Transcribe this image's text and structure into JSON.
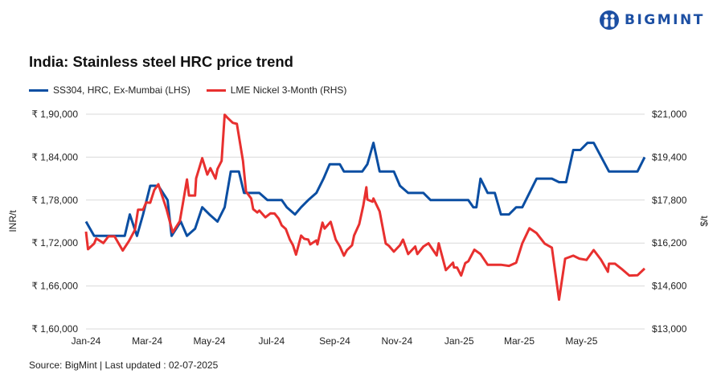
{
  "brand": {
    "name": "BIGMINT",
    "color": "#1c4fa3"
  },
  "chart_data": {
    "type": "line",
    "title": "India: Stainless steel HRC price trend",
    "legend_position": "top-left",
    "grid": true,
    "x_ticks": [
      "Jan-24",
      "Mar-24",
      "May-24",
      "Jul-24",
      "Sep-24",
      "Nov-24",
      "Jan-25",
      "Mar-25",
      "May-25"
    ],
    "x_tick_dates": [
      "2024-01-01",
      "2024-03-01",
      "2024-05-01",
      "2024-07-01",
      "2024-09-01",
      "2024-11-01",
      "2025-01-01",
      "2025-03-01",
      "2025-05-01"
    ],
    "xlim": [
      "2024-01-01",
      "2025-07-02"
    ],
    "y_left": {
      "label": "INR/t",
      "lim": [
        160000,
        190000
      ],
      "ticks": [
        "₹ 1,60,000",
        "₹ 1,66,000",
        "₹ 1,72,000",
        "₹ 1,78,000",
        "₹ 1,84,000",
        "₹ 1,90,000"
      ],
      "tick_values": [
        160000,
        166000,
        172000,
        178000,
        184000,
        190000
      ]
    },
    "y_right": {
      "label": "$/t",
      "lim": [
        13000,
        21000
      ],
      "ticks": [
        "$13,000",
        "$14,600",
        "$16,200",
        "$17,800",
        "$19,400",
        "$21,000"
      ],
      "tick_values": [
        13000,
        14600,
        16200,
        17800,
        19400,
        21000
      ]
    },
    "series": [
      {
        "name": "SS304, HRC, Ex-Mumbai (LHS)",
        "axis": "left",
        "color": "#0b4ea2",
        "points": [
          [
            "2024-01-01",
            175000
          ],
          [
            "2024-01-09",
            173000
          ],
          [
            "2024-02-08",
            173000
          ],
          [
            "2024-02-13",
            176000
          ],
          [
            "2024-02-20",
            173000
          ],
          [
            "2024-02-26",
            176000
          ],
          [
            "2024-03-04",
            180000
          ],
          [
            "2024-03-12",
            180000
          ],
          [
            "2024-03-21",
            178000
          ],
          [
            "2024-03-25",
            173000
          ],
          [
            "2024-04-03",
            175000
          ],
          [
            "2024-04-09",
            173000
          ],
          [
            "2024-04-17",
            174000
          ],
          [
            "2024-04-24",
            177000
          ],
          [
            "2024-05-01",
            176000
          ],
          [
            "2024-05-09",
            175000
          ],
          [
            "2024-05-16",
            177000
          ],
          [
            "2024-05-22",
            182000
          ],
          [
            "2024-05-30",
            182000
          ],
          [
            "2024-06-04",
            179000
          ],
          [
            "2024-06-19",
            179000
          ],
          [
            "2024-06-27",
            178000
          ],
          [
            "2024-07-11",
            178000
          ],
          [
            "2024-07-16",
            177000
          ],
          [
            "2024-07-24",
            176000
          ],
          [
            "2024-07-30",
            177000
          ],
          [
            "2024-08-06",
            178000
          ],
          [
            "2024-08-14",
            179000
          ],
          [
            "2024-08-21",
            181000
          ],
          [
            "2024-08-27",
            183000
          ],
          [
            "2024-09-06",
            183000
          ],
          [
            "2024-09-10",
            182000
          ],
          [
            "2024-09-28",
            182000
          ],
          [
            "2024-10-03",
            183000
          ],
          [
            "2024-10-09",
            186000
          ],
          [
            "2024-10-15",
            182000
          ],
          [
            "2024-10-29",
            182000
          ],
          [
            "2024-11-04",
            180000
          ],
          [
            "2024-11-12",
            179000
          ],
          [
            "2024-11-27",
            179000
          ],
          [
            "2024-12-04",
            178000
          ],
          [
            "2025-01-10",
            178000
          ],
          [
            "2025-01-15",
            177000
          ],
          [
            "2025-01-18",
            177000
          ],
          [
            "2025-01-22",
            181000
          ],
          [
            "2025-01-29",
            179000
          ],
          [
            "2025-02-05",
            179000
          ],
          [
            "2025-02-11",
            176000
          ],
          [
            "2025-02-19",
            176000
          ],
          [
            "2025-02-26",
            177000
          ],
          [
            "2025-03-04",
            177000
          ],
          [
            "2025-03-18",
            181000
          ],
          [
            "2025-04-02",
            181000
          ],
          [
            "2025-04-09",
            180500
          ],
          [
            "2025-04-16",
            180500
          ],
          [
            "2025-04-23",
            185000
          ],
          [
            "2025-04-30",
            185000
          ],
          [
            "2025-05-07",
            186000
          ],
          [
            "2025-05-13",
            186000
          ],
          [
            "2025-05-28",
            182000
          ],
          [
            "2025-06-25",
            182000
          ],
          [
            "2025-07-02",
            184000
          ]
        ]
      },
      {
        "name": "LME Nickel 3-Month (RHS)",
        "axis": "right",
        "color": "#e8302f",
        "points": [
          [
            "2024-01-01",
            16625
          ],
          [
            "2024-01-03",
            15970
          ],
          [
            "2024-01-09",
            16180
          ],
          [
            "2024-01-11",
            16370
          ],
          [
            "2024-01-18",
            16200
          ],
          [
            "2024-01-23",
            16450
          ],
          [
            "2024-01-29",
            16450
          ],
          [
            "2024-02-06",
            15920
          ],
          [
            "2024-02-12",
            16270
          ],
          [
            "2024-02-18",
            16690
          ],
          [
            "2024-02-21",
            17440
          ],
          [
            "2024-02-26",
            17440
          ],
          [
            "2024-02-29",
            17710
          ],
          [
            "2024-03-04",
            17700
          ],
          [
            "2024-03-08",
            18180
          ],
          [
            "2024-03-12",
            18390
          ],
          [
            "2024-03-20",
            17460
          ],
          [
            "2024-03-26",
            16600
          ],
          [
            "2024-04-02",
            17015
          ],
          [
            "2024-04-05",
            17670
          ],
          [
            "2024-04-09",
            18570
          ],
          [
            "2024-04-11",
            17970
          ],
          [
            "2024-04-17",
            17970
          ],
          [
            "2024-04-18",
            18610
          ],
          [
            "2024-04-24",
            19360
          ],
          [
            "2024-04-29",
            18750
          ],
          [
            "2024-05-02",
            18990
          ],
          [
            "2024-05-07",
            18600
          ],
          [
            "2024-05-09",
            18960
          ],
          [
            "2024-05-13",
            19260
          ],
          [
            "2024-05-16",
            20980
          ],
          [
            "2024-05-19",
            20860
          ],
          [
            "2024-05-24",
            20680
          ],
          [
            "2024-05-28",
            20640
          ],
          [
            "2024-06-03",
            19260
          ],
          [
            "2024-06-06",
            18120
          ],
          [
            "2024-06-11",
            17860
          ],
          [
            "2024-06-13",
            17460
          ],
          [
            "2024-06-17",
            17340
          ],
          [
            "2024-06-19",
            17410
          ],
          [
            "2024-06-25",
            17160
          ],
          [
            "2024-06-30",
            17310
          ],
          [
            "2024-07-04",
            17300
          ],
          [
            "2024-07-08",
            17110
          ],
          [
            "2024-07-11",
            16860
          ],
          [
            "2024-07-15",
            16720
          ],
          [
            "2024-07-19",
            16330
          ],
          [
            "2024-07-22",
            16120
          ],
          [
            "2024-07-25",
            15770
          ],
          [
            "2024-07-30",
            16480
          ],
          [
            "2024-08-02",
            16360
          ],
          [
            "2024-08-06",
            16330
          ],
          [
            "2024-08-08",
            16150
          ],
          [
            "2024-08-14",
            16300
          ],
          [
            "2024-08-15",
            16150
          ],
          [
            "2024-08-20",
            16960
          ],
          [
            "2024-08-22",
            16740
          ],
          [
            "2024-08-28",
            16990
          ],
          [
            "2024-09-02",
            16330
          ],
          [
            "2024-09-06",
            16070
          ],
          [
            "2024-09-10",
            15730
          ],
          [
            "2024-09-13",
            15940
          ],
          [
            "2024-09-18",
            16120
          ],
          [
            "2024-09-20",
            16480
          ],
          [
            "2024-09-25",
            16900
          ],
          [
            "2024-09-29",
            17600
          ],
          [
            "2024-10-02",
            18280
          ],
          [
            "2024-10-03",
            17820
          ],
          [
            "2024-10-08",
            17740
          ],
          [
            "2024-10-09",
            17860
          ],
          [
            "2024-10-15",
            17380
          ],
          [
            "2024-10-21",
            16180
          ],
          [
            "2024-10-24",
            16100
          ],
          [
            "2024-10-29",
            15880
          ],
          [
            "2024-11-04",
            16120
          ],
          [
            "2024-11-07",
            16330
          ],
          [
            "2024-11-12",
            15790
          ],
          [
            "2024-11-19",
            16070
          ],
          [
            "2024-11-21",
            15790
          ],
          [
            "2024-11-27",
            16070
          ],
          [
            "2024-12-02",
            16190
          ],
          [
            "2024-12-10",
            15740
          ],
          [
            "2024-12-12",
            16190
          ],
          [
            "2024-12-19",
            15190
          ],
          [
            "2024-12-26",
            15470
          ],
          [
            "2024-12-27",
            15290
          ],
          [
            "2024-12-30",
            15290
          ],
          [
            "2025-01-03",
            14990
          ],
          [
            "2025-01-07",
            15450
          ],
          [
            "2025-01-10",
            15520
          ],
          [
            "2025-01-16",
            15950
          ],
          [
            "2025-01-22",
            15790
          ],
          [
            "2025-01-29",
            15390
          ],
          [
            "2025-02-11",
            15390
          ],
          [
            "2025-02-19",
            15350
          ],
          [
            "2025-02-26",
            15470
          ],
          [
            "2025-03-04",
            16190
          ],
          [
            "2025-03-11",
            16750
          ],
          [
            "2025-03-18",
            16570
          ],
          [
            "2025-03-26",
            16180
          ],
          [
            "2025-04-02",
            16030
          ],
          [
            "2025-04-09",
            14090
          ],
          [
            "2025-04-15",
            15620
          ],
          [
            "2025-04-23",
            15730
          ],
          [
            "2025-04-29",
            15620
          ],
          [
            "2025-05-06",
            15570
          ],
          [
            "2025-05-13",
            15940
          ],
          [
            "2025-05-20",
            15590
          ],
          [
            "2025-05-27",
            15130
          ],
          [
            "2025-05-28",
            15430
          ],
          [
            "2025-06-03",
            15430
          ],
          [
            "2025-06-09",
            15250
          ],
          [
            "2025-06-17",
            14990
          ],
          [
            "2025-06-25",
            15000
          ],
          [
            "2025-07-02",
            15250
          ]
        ]
      }
    ],
    "source": "Source: BigMint | Last updated : 02-07-2025"
  }
}
